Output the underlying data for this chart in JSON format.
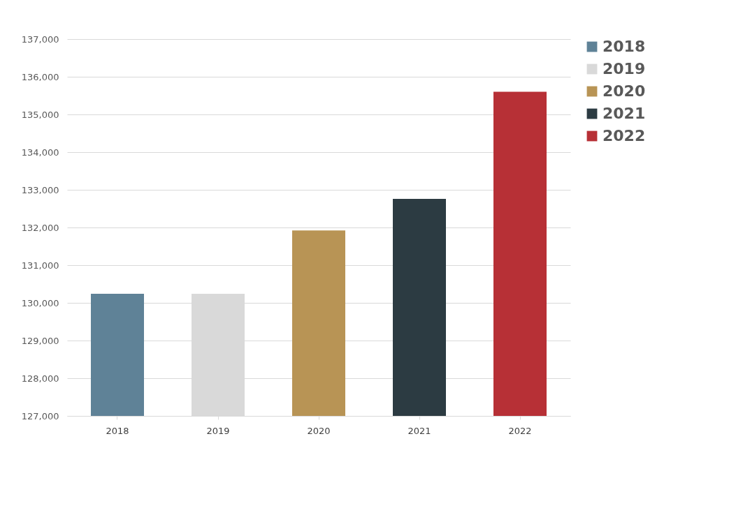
{
  "chart_data": {
    "type": "bar",
    "categories": [
      "2018",
      "2019",
      "2020",
      "2021",
      "2022"
    ],
    "stacked": true,
    "series": [
      {
        "name": "2018",
        "color": "#5f8297",
        "values": [
          130240,
          null,
          null,
          null,
          null
        ]
      },
      {
        "name": "2019",
        "color": "#d9d9d9",
        "values": [
          null,
          130240,
          null,
          null,
          null
        ]
      },
      {
        "name": "2020",
        "color": "#b89455",
        "values": [
          null,
          null,
          131920,
          null,
          null
        ]
      },
      {
        "name": "2021",
        "color": "#2c3b42",
        "values": [
          null,
          null,
          null,
          132760,
          null
        ]
      },
      {
        "name": "2022",
        "color": "#b73036",
        "values": [
          null,
          null,
          null,
          null,
          135600
        ]
      }
    ],
    "ylim": [
      127000,
      137000
    ],
    "yticks": [
      {
        "value": 127000,
        "label": "127,000"
      },
      {
        "value": 128000,
        "label": "128,000"
      },
      {
        "value": 129000,
        "label": "129,000"
      },
      {
        "value": 130000,
        "label": "130,000"
      },
      {
        "value": 131000,
        "label": "131,000"
      },
      {
        "value": 132000,
        "label": "132,000"
      },
      {
        "value": 133000,
        "label": "133,000"
      },
      {
        "value": 134000,
        "label": "134,000"
      },
      {
        "value": 135000,
        "label": "135,000"
      },
      {
        "value": 136000,
        "label": "136,000"
      },
      {
        "value": 137000,
        "label": "137,000"
      }
    ],
    "grid": "y",
    "legend": "right"
  }
}
